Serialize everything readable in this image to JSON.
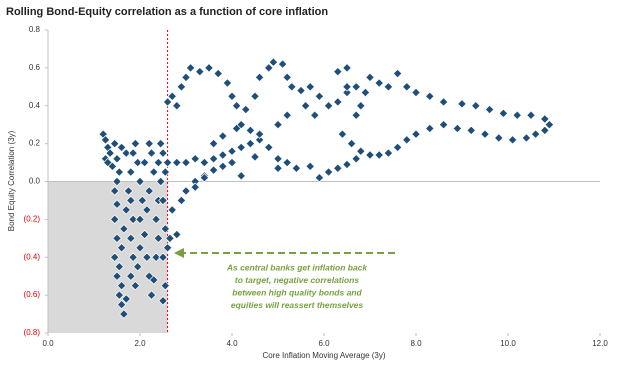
{
  "chart_data": {
    "type": "scatter",
    "title": "Rolling Bond-Equity correlation as a function of core inflation",
    "x_label": "Core Inflation Moving Average (3y)",
    "y_label": "Bond Equity Correlation (3y)",
    "xlim": [
      0,
      12
    ],
    "ylim": [
      -0.8,
      0.8
    ],
    "xticks": [
      {
        "value": 0,
        "label": "0.0"
      },
      {
        "value": 2,
        "label": "2.0"
      },
      {
        "value": 4,
        "label": "4.0"
      },
      {
        "value": 6,
        "label": "6.0"
      },
      {
        "value": 8,
        "label": "8.0"
      },
      {
        "value": 10,
        "label": "10.0"
      },
      {
        "value": 12,
        "label": "12.0"
      }
    ],
    "yticks": [
      {
        "value": -0.8,
        "label": "(0.8)"
      },
      {
        "value": -0.6,
        "label": "(0.6)"
      },
      {
        "value": -0.4,
        "label": "(0.4)"
      },
      {
        "value": -0.2,
        "label": "(0.2)"
      },
      {
        "value": 0,
        "label": "0.0"
      },
      0.2,
      0.4,
      0.6,
      0.8
    ],
    "negative_label_color": "#e00000",
    "vline_x": 2.6,
    "vline_color": "#e00000",
    "shade_color": "#d9d9d9",
    "annotation": [
      "As central banks get inflation back",
      "to target, negative correlations",
      "between high quality bonds and",
      "equities will reassert themselves"
    ],
    "annotation_color": "#77a040",
    "series": [
      {
        "color": "#1f4e79",
        "x": [
          1.2,
          1.25,
          1.3,
          1.25,
          1.3,
          1.35,
          1.4,
          1.45,
          1.5,
          1.55,
          1.6,
          1.7,
          1.5,
          1.45,
          1.5,
          1.45,
          1.5,
          1.45,
          1.5,
          1.55,
          1.6,
          1.65,
          1.7,
          1.6,
          1.55,
          1.6,
          1.65,
          1.7,
          1.75,
          1.8,
          1.85,
          1.9,
          1.95,
          1.8,
          1.85,
          1.8,
          1.85,
          1.8,
          1.9,
          1.95,
          2.0,
          2.0,
          2.05,
          2.0,
          2.1,
          2.2,
          2.25,
          2.3,
          2.2,
          2.15,
          2.1,
          2.15,
          2.2,
          2.25,
          2.3,
          2.35,
          2.4,
          2.35,
          2.4,
          2.45,
          2.4,
          2.45,
          2.5,
          2.55,
          2.5,
          2.55,
          2.5,
          2.55,
          2.5,
          2.6,
          2.65,
          2.8,
          2.7,
          2.9,
          2.6,
          2.8,
          3.0,
          3.2,
          3.4,
          3.6,
          3.8,
          4.0,
          4.2,
          4.4,
          4.6,
          4.8,
          5.0,
          5.2,
          3.0,
          3.2,
          3.4,
          3.6,
          3.8,
          4.0,
          2.6,
          2.8,
          2.7,
          2.9,
          3.0,
          3.1,
          3.3,
          3.5,
          3.7,
          3.9,
          4.0,
          4.1,
          4.3,
          4.5,
          4.6,
          4.8,
          4.9,
          5.1,
          5.2,
          5.3,
          5.5,
          5.7,
          5.9,
          6.1,
          6.3,
          6.5,
          6.7,
          6.9,
          7.0,
          7.2,
          7.4,
          7.6,
          7.8,
          8.0,
          8.3,
          8.6,
          9.0,
          9.3,
          9.6,
          9.9,
          10.2,
          10.5,
          10.8,
          10.9,
          10.8,
          10.6,
          10.4,
          10.1,
          9.8,
          9.5,
          9.2,
          8.9,
          8.6,
          8.3,
          8.0,
          7.8,
          7.6,
          7.4,
          7.2,
          7.0,
          6.8,
          6.6,
          6.4,
          6.7,
          6.8,
          6.5,
          6.3,
          6.5,
          5.0,
          5.4,
          5.7,
          5.9,
          6.1,
          6.3,
          6.5,
          6.7,
          4.2,
          4.4,
          4.6,
          5.0,
          5.2,
          5.6,
          5.8,
          4.5,
          4.2,
          3.6,
          3.8,
          4.1,
          3.4,
          3.2
        ],
        "values": [
          0.25,
          0.22,
          0.18,
          0.12,
          0.1,
          0.15,
          0.08,
          0.2,
          0.12,
          0.05,
          0.18,
          0.15,
          0.0,
          -0.05,
          -0.12,
          -0.2,
          -0.3,
          -0.4,
          -0.5,
          -0.6,
          -0.65,
          -0.7,
          -0.62,
          -0.55,
          -0.45,
          -0.35,
          -0.25,
          -0.15,
          -0.05,
          0.05,
          0.15,
          0.2,
          0.1,
          -0.1,
          -0.2,
          -0.3,
          -0.4,
          -0.5,
          -0.55,
          -0.45,
          -0.35,
          -0.2,
          -0.1,
          0.0,
          0.1,
          0.2,
          0.15,
          0.05,
          -0.05,
          -0.15,
          -0.28,
          -0.4,
          -0.5,
          -0.6,
          -0.52,
          -0.4,
          -0.3,
          -0.2,
          -0.1,
          0.0,
          0.1,
          0.2,
          0.15,
          0.05,
          -0.1,
          -0.25,
          -0.4,
          -0.55,
          -0.63,
          -0.35,
          -0.3,
          -0.28,
          -0.15,
          -0.1,
          0.1,
          0.1,
          0.1,
          0.12,
          0.1,
          0.12,
          0.14,
          0.16,
          0.18,
          0.2,
          0.22,
          0.18,
          0.12,
          0.1,
          -0.05,
          0,
          0.03,
          0.06,
          0.08,
          0.1,
          0.42,
          0.4,
          0.45,
          0.5,
          0.55,
          0.6,
          0.58,
          0.6,
          0.57,
          0.52,
          0.45,
          0.4,
          0.38,
          0.45,
          0.55,
          0.6,
          0.63,
          0.62,
          0.55,
          0.5,
          0.48,
          0.5,
          0.45,
          0.4,
          0.42,
          0.47,
          0.5,
          0.47,
          0.55,
          0.52,
          0.5,
          0.57,
          0.5,
          0.47,
          0.45,
          0.42,
          0.41,
          0.4,
          0.38,
          0.36,
          0.35,
          0.35,
          0.33,
          0.3,
          0.27,
          0.25,
          0.23,
          0.22,
          0.23,
          0.25,
          0.27,
          0.28,
          0.3,
          0.28,
          0.25,
          0.22,
          0.18,
          0.15,
          0.14,
          0.14,
          0.16,
          0.2,
          0.25,
          0.35,
          0.4,
          0.5,
          0.58,
          0.6,
          0.07,
          0.07,
          0.08,
          0.02,
          0.05,
          0.07,
          0.09,
          0.12,
          0.3,
          0.27,
          0.25,
          0.3,
          0.35,
          0.4,
          0.35,
          0.13,
          0.03,
          0.2,
          0.24,
          0.28,
          0.02,
          -0.03
        ]
      }
    ]
  }
}
